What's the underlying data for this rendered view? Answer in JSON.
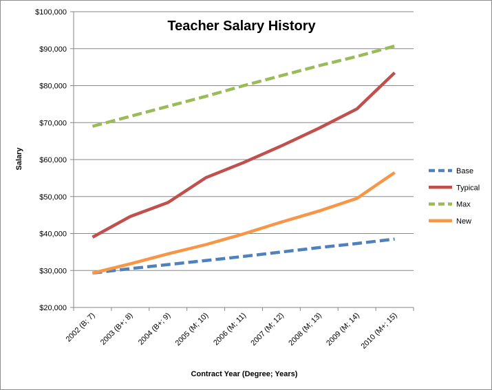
{
  "chart_data": {
    "type": "line",
    "title": "Teacher Salary History",
    "xlabel": "Contract Year (Degree; Years)",
    "ylabel": "Salary",
    "ylim": [
      20000,
      100000
    ],
    "y_ticks": [
      "$20,000",
      "$30,000",
      "$40,000",
      "$50,000",
      "$60,000",
      "$70,000",
      "$80,000",
      "$90,000",
      "$100,000"
    ],
    "y_tick_values": [
      20000,
      30000,
      40000,
      50000,
      60000,
      70000,
      80000,
      90000,
      100000
    ],
    "grid": "horizontal",
    "legend_position": "right",
    "categories": [
      "2002 (B; 7)",
      "2003 (B+; 8)",
      "2004 (B+; 9)",
      "2005 (M; 10)",
      "2006 (M; 11)",
      "2007 (M; 12)",
      "2008 (M; 13)",
      "2009 (M; 14)",
      "2010 (M+; 15)"
    ],
    "series": [
      {
        "name": "Base",
        "color": "#4f81bd",
        "dash": "dashed",
        "values": [
          29300,
          30500,
          31600,
          32700,
          33800,
          35000,
          36200,
          37300,
          38500
        ]
      },
      {
        "name": "Typical",
        "color": "#c0504d",
        "dash": "solid",
        "values": [
          39000,
          44600,
          48400,
          55100,
          59200,
          63700,
          68500,
          73700,
          83500
        ]
      },
      {
        "name": "Max",
        "color": "#9bbb59",
        "dash": "dashed",
        "values": [
          69000,
          71700,
          74400,
          77100,
          80000,
          82700,
          85400,
          87900,
          90700
        ]
      },
      {
        "name": "New",
        "color": "#f79646",
        "dash": "solid",
        "values": [
          29300,
          31800,
          34500,
          37000,
          39900,
          43100,
          46100,
          49500,
          56500
        ]
      }
    ]
  }
}
